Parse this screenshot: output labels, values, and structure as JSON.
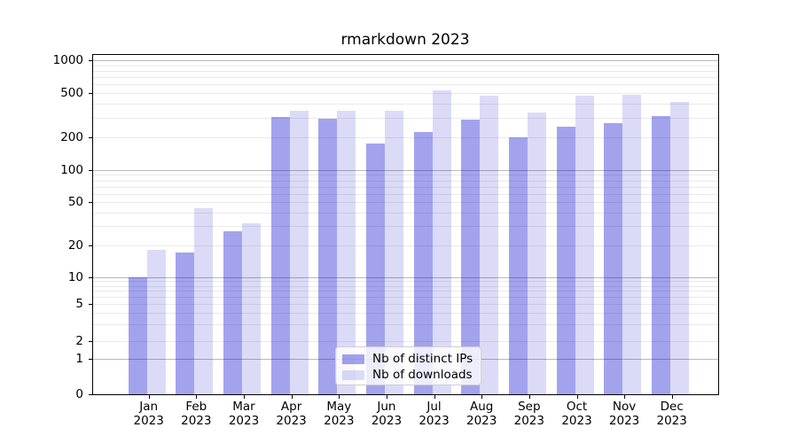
{
  "title": "rmarkdown 2023",
  "legend": {
    "ips_label": "Nb of distinct IPs",
    "downloads_label": "Nb of downloads"
  },
  "colors": {
    "base_blue": "#0000cd",
    "bar_ips_fill": "rgba(0,0,205,0.36)",
    "bar_downloads_fill": "rgba(0,0,205,0.14)",
    "major_grid": "#b9b9b9",
    "minor_grid": "#eaeaea"
  },
  "chart_data": {
    "type": "bar",
    "title": "rmarkdown 2023",
    "categories": [
      "Jan",
      "Feb",
      "Mar",
      "Apr",
      "May",
      "Jun",
      "Jul",
      "Aug",
      "Sep",
      "Oct",
      "Nov",
      "Dec"
    ],
    "year": "2023",
    "series": [
      {
        "name": "Nb of distinct IPs",
        "values": [
          10,
          17,
          27,
          305,
          295,
          177,
          225,
          290,
          200,
          250,
          270,
          310
        ]
      },
      {
        "name": "Nb of downloads",
        "values": [
          18,
          44,
          32,
          345,
          350,
          345,
          530,
          475,
          335,
          470,
          485,
          420
        ]
      }
    ],
    "xlabel": "",
    "ylabel": "",
    "yscale": "symlog",
    "y_ticks": [
      0,
      1,
      2,
      5,
      10,
      20,
      50,
      100,
      200,
      500,
      1000
    ],
    "ylim": [
      0,
      1200
    ],
    "grid": true,
    "legend_position": "lower center"
  }
}
